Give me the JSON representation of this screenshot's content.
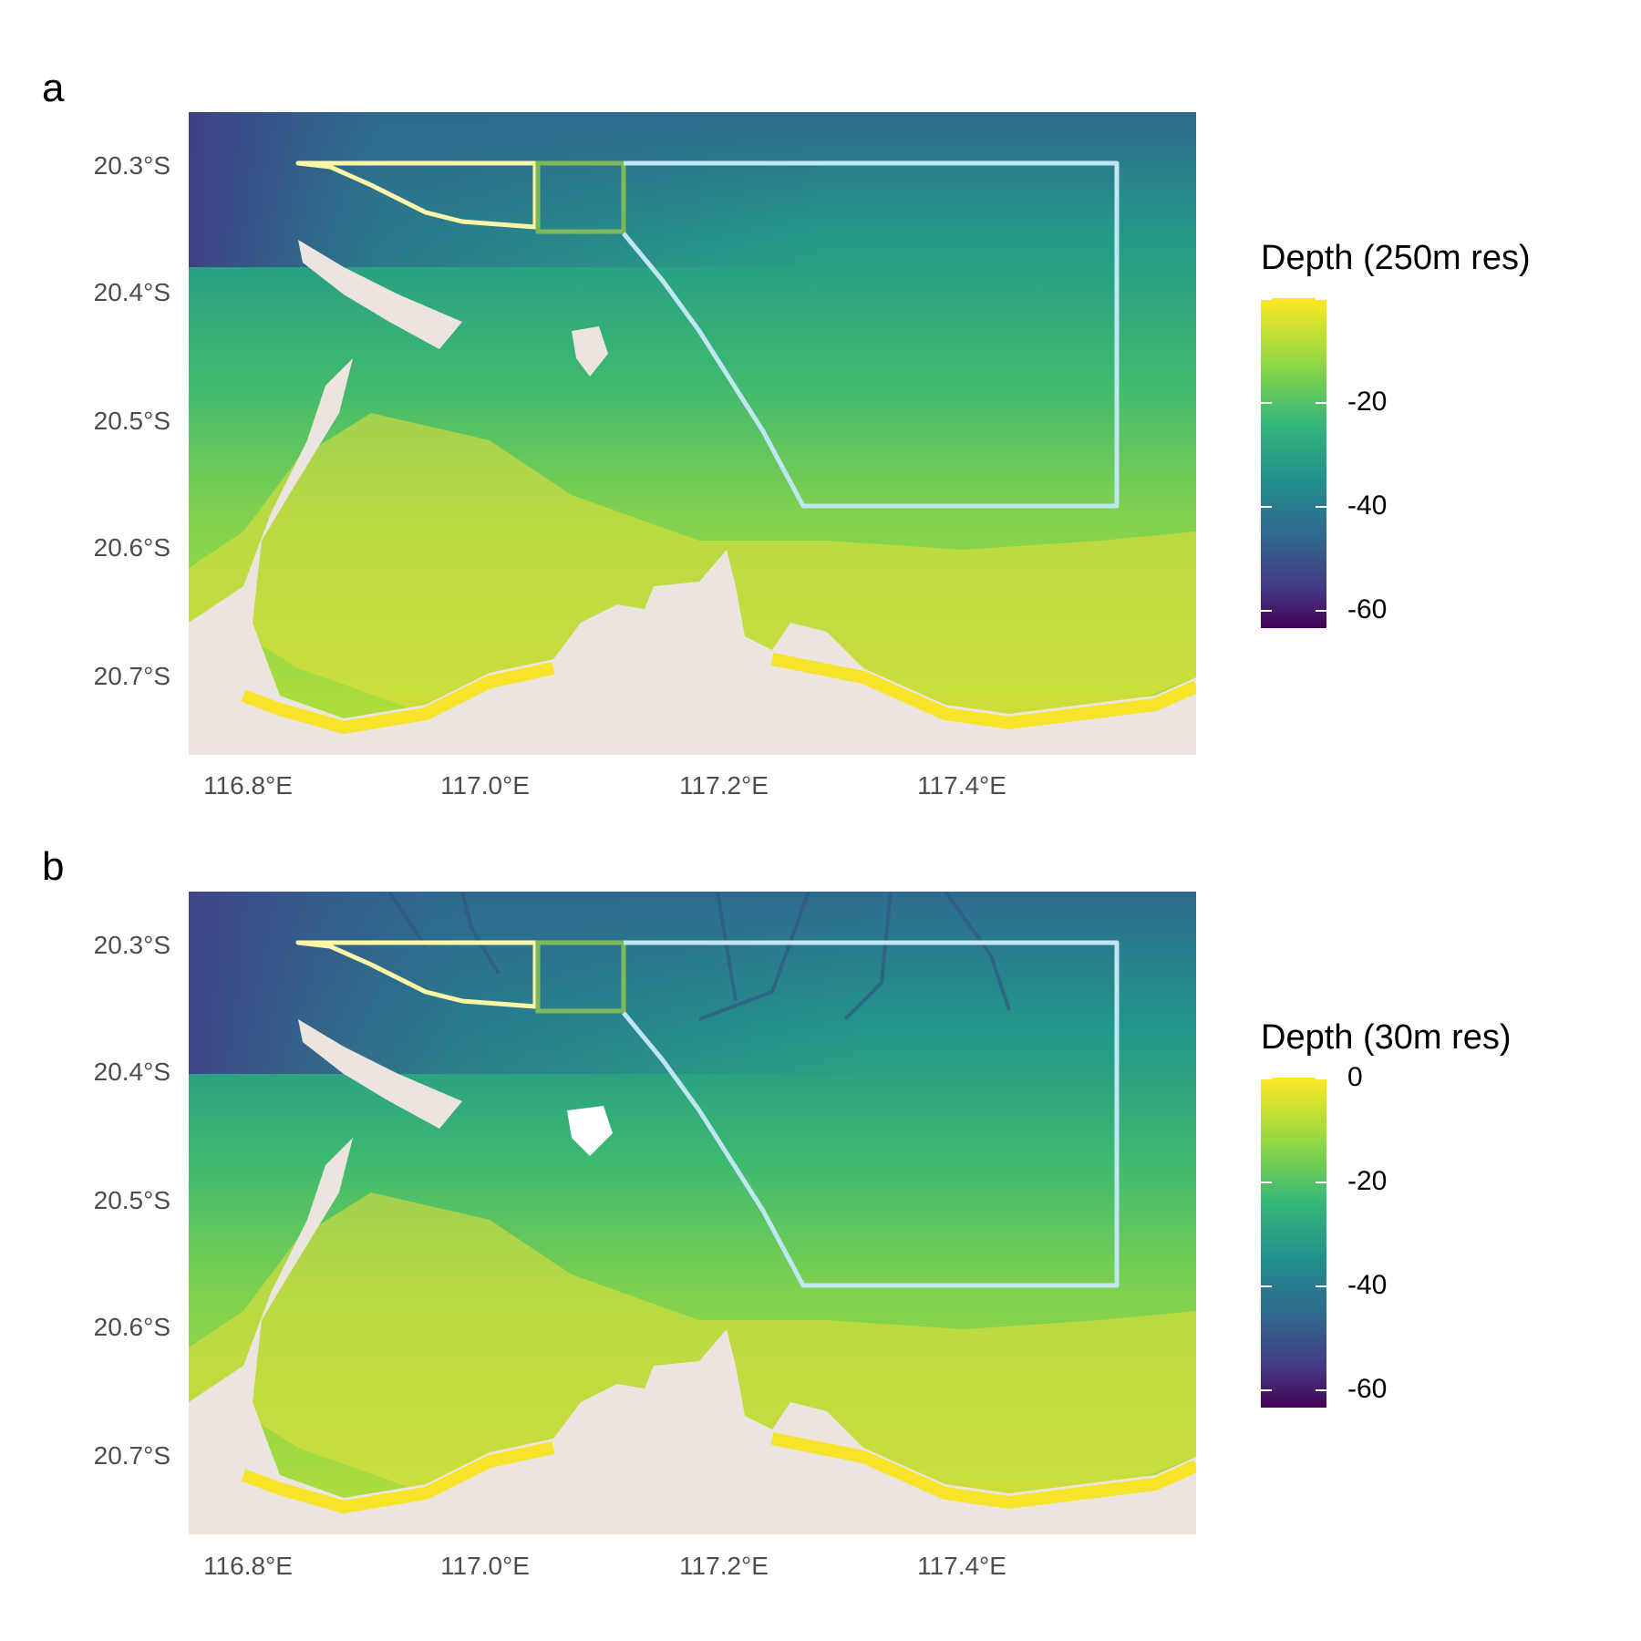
{
  "panels": [
    {
      "label": "a",
      "legend": {
        "title": "Depth (250m res)",
        "ticks": [
          "",
          "-20",
          "-40",
          "-60"
        ]
      },
      "lat_ticks": [
        "20.3°S",
        "20.4°S",
        "20.5°S",
        "20.6°S",
        "20.7°S"
      ],
      "lon_ticks": [
        "116.8°E",
        "117.0°E",
        "117.2°E",
        "117.4°E"
      ]
    },
    {
      "label": "b",
      "legend": {
        "title": "Depth (30m res)",
        "ticks": [
          "0",
          "-20",
          "-40",
          "-60"
        ]
      },
      "lat_ticks": [
        "20.3°S",
        "20.4°S",
        "20.5°S",
        "20.6°S",
        "20.7°S"
      ],
      "lon_ticks": [
        "116.8°E",
        "117.0°E",
        "117.2°E",
        "117.4°E"
      ]
    }
  ],
  "colors": {
    "land": "#ece4de",
    "deep_water": "#3b5a8e",
    "mid_water": "#26978a",
    "shallow_water": "#86d549",
    "coast_water": "#f0e22f",
    "zone_yellow": "#fdf6a6",
    "zone_green": "#7fb85a",
    "zone_blue": "#bfe6f2"
  }
}
